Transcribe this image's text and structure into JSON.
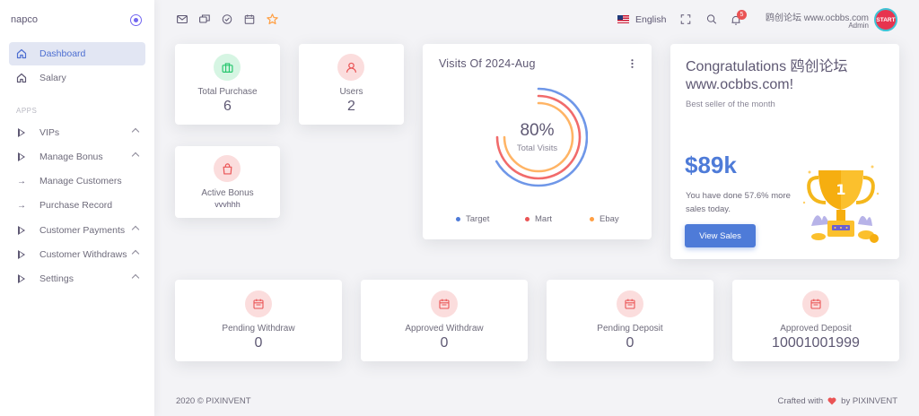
{
  "sidebar": {
    "brand": "napco",
    "section_label": "APPS",
    "items": [
      {
        "label": "Dashboard",
        "icon": "home-icon"
      },
      {
        "label": "Salary",
        "icon": "home-icon"
      },
      {
        "label": "VIPs",
        "icon": "play-icon"
      },
      {
        "label": "Manage Bonus",
        "icon": "play-icon"
      },
      {
        "label": "Manage Customers",
        "icon": "arrow-right-icon"
      },
      {
        "label": "Purchase Record",
        "icon": "arrow-right-icon"
      },
      {
        "label": "Customer Payments",
        "icon": "play-icon"
      },
      {
        "label": "Customer Withdraws",
        "icon": "play-icon"
      },
      {
        "label": "Settings",
        "icon": "play-icon"
      }
    ]
  },
  "navbar": {
    "language": "English",
    "notification_count": "5",
    "user_name": "鸥创论坛 www.ocbbs.com",
    "user_role": "Admin",
    "avatar_text": "START"
  },
  "stats_top": [
    {
      "label": "Total Purchase",
      "value": "6",
      "color": "#28c76f"
    },
    {
      "label": "Users",
      "value": "2",
      "color": "#ea5455"
    },
    {
      "label": "Active Bonus",
      "value": "vvvhhh",
      "color": "#ea5455"
    }
  ],
  "visits": {
    "title": "Visits Of 2024-Aug",
    "percent": "80%",
    "caption": "Total Visits",
    "legend": [
      {
        "label": "Target",
        "color": "#4e7bd8"
      },
      {
        "label": "Mart",
        "color": "#ea5455"
      },
      {
        "label": "Ebay",
        "color": "#ff9f43"
      }
    ]
  },
  "congrats": {
    "title": "Congratulations 鸥创论坛 www.ocbbs.com!",
    "subtitle": "Best seller of the month",
    "amount": "$89k",
    "description": "You have done 57.6% more sales today.",
    "button": "View Sales"
  },
  "stats_bottom": [
    {
      "label": "Pending Withdraw",
      "value": "0"
    },
    {
      "label": "Approved Withdraw",
      "value": "0"
    },
    {
      "label": "Pending Deposit",
      "value": "0"
    },
    {
      "label": "Approved Deposit",
      "value": "10001001999"
    }
  ],
  "footer": {
    "left": "2020 © PIXINVENT",
    "right_before": "Crafted with",
    "right_after": "by PIXINVENT"
  }
}
